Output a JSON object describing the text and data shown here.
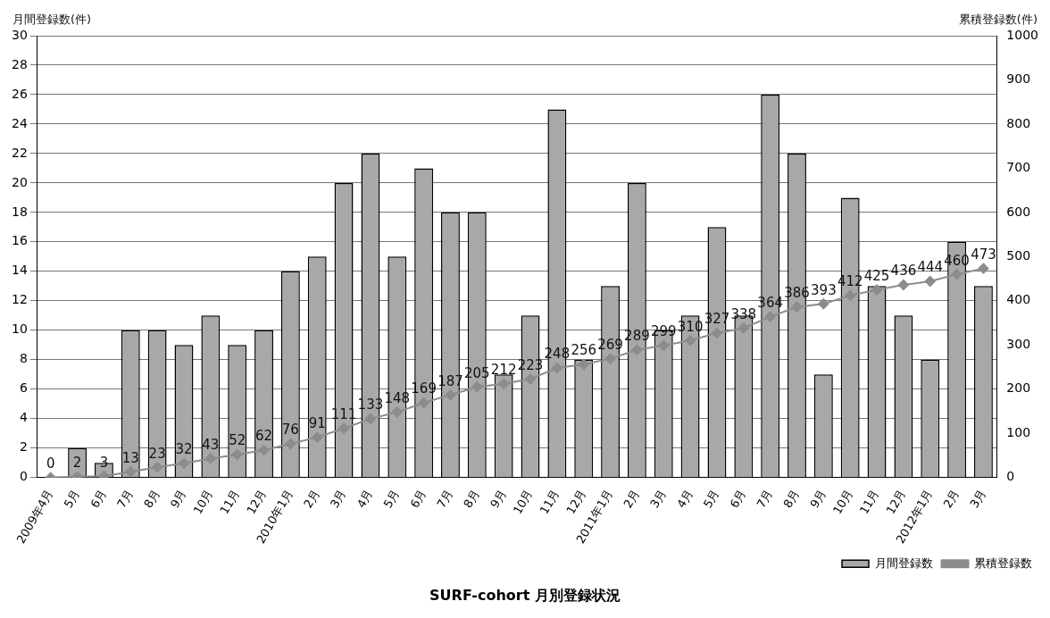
{
  "chart_data": {
    "type": "bar",
    "title": "SURF-cohort 月別登録状況",
    "ylabel": "月間登録数(件)",
    "y2label": "累積登録数(件)",
    "categories": [
      "2009年4月",
      "5月",
      "6月",
      "7月",
      "8月",
      "9月",
      "10月",
      "11月",
      "12月",
      "2010年1月",
      "2月",
      "3月",
      "4月",
      "5月",
      "6月",
      "7月",
      "8月",
      "9月",
      "10月",
      "11月",
      "12月",
      "2011年1月",
      "2月",
      "3月",
      "4月",
      "5月",
      "6月",
      "7月",
      "8月",
      "9月",
      "10月",
      "11月",
      "12月",
      "2012年1月",
      "2月",
      "3月"
    ],
    "series": [
      {
        "name": "月間登録数",
        "color": "#a8a8a8",
        "values": [
          0,
          2,
          1,
          10,
          10,
          9,
          11,
          9,
          10,
          14,
          15,
          20,
          22,
          15,
          21,
          18,
          18,
          7,
          11,
          25,
          8,
          13,
          20,
          10,
          11,
          17,
          11,
          26,
          22,
          7,
          19,
          13,
          11,
          8,
          16,
          13
        ]
      },
      {
        "name": "累積登録数",
        "type": "line",
        "axis": "y2",
        "color": "#8c8c8c",
        "values": [
          0,
          2,
          3,
          13,
          23,
          32,
          43,
          52,
          62,
          76,
          91,
          111,
          133,
          148,
          169,
          187,
          205,
          212,
          223,
          248,
          256,
          269,
          289,
          299,
          310,
          327,
          338,
          364,
          386,
          393,
          412,
          425,
          436,
          444,
          460,
          473
        ],
        "value_labels": [
          "0",
          "2",
          "3",
          "13",
          "23",
          "32",
          "43",
          "52",
          "62",
          "76",
          "91",
          "111",
          "133",
          "148",
          "169",
          "187",
          "205",
          "212",
          "223",
          "248",
          "256",
          "269",
          "289",
          "299",
          "310",
          "327",
          "338",
          "364",
          "386",
          "393",
          "412",
          "425",
          "436",
          "444",
          "460",
          "473"
        ]
      }
    ],
    "ylim": [
      0,
      30
    ],
    "yticks": [
      0,
      2,
      4,
      6,
      8,
      10,
      12,
      14,
      16,
      18,
      20,
      22,
      24,
      26,
      28,
      30
    ],
    "y2lim": [
      0,
      1000
    ],
    "y2ticks": [
      0,
      100,
      200,
      300,
      400,
      500,
      600,
      700,
      800,
      900,
      1000
    ],
    "grid": "y",
    "legend": "bottom right",
    "marker": "diamond"
  }
}
